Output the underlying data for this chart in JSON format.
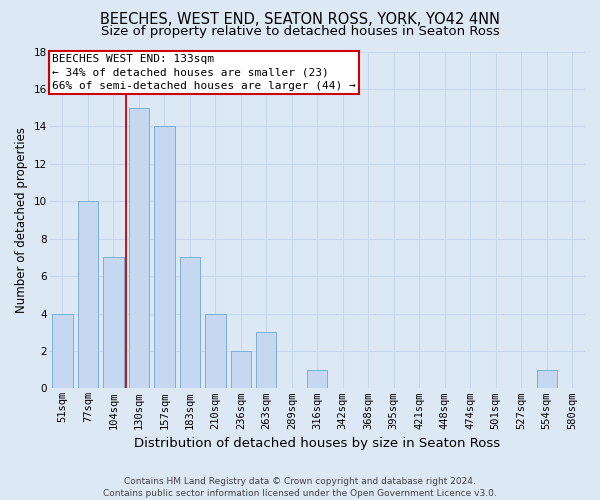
{
  "title": "BEECHES, WEST END, SEATON ROSS, YORK, YO42 4NN",
  "subtitle": "Size of property relative to detached houses in Seaton Ross",
  "xlabel": "Distribution of detached houses by size in Seaton Ross",
  "ylabel": "Number of detached properties",
  "categories": [
    "51sqm",
    "77sqm",
    "104sqm",
    "130sqm",
    "157sqm",
    "183sqm",
    "210sqm",
    "236sqm",
    "263sqm",
    "289sqm",
    "316sqm",
    "342sqm",
    "368sqm",
    "395sqm",
    "421sqm",
    "448sqm",
    "474sqm",
    "501sqm",
    "527sqm",
    "554sqm",
    "580sqm"
  ],
  "values": [
    4,
    10,
    7,
    15,
    14,
    7,
    4,
    2,
    3,
    0,
    1,
    0,
    0,
    0,
    0,
    0,
    0,
    0,
    0,
    1,
    0
  ],
  "bar_color": "#c5d8ef",
  "bar_edge_color": "#7aafd4",
  "grid_color": "#c8d8ec",
  "background_color": "#dde8f5",
  "annotation_line1": "BEECHES WEST END: 133sqm",
  "annotation_line2": "← 34% of detached houses are smaller (23)",
  "annotation_line3": "66% of semi-detached houses are larger (44) →",
  "annotation_box_facecolor": "#ffffff",
  "annotation_box_edge_color": "#cc0000",
  "red_line_x": 2.5,
  "ylim": [
    0,
    18
  ],
  "yticks": [
    0,
    2,
    4,
    6,
    8,
    10,
    12,
    14,
    16,
    18
  ],
  "footer_line1": "Contains HM Land Registry data © Crown copyright and database right 2024.",
  "footer_line2": "Contains public sector information licensed under the Open Government Licence v3.0.",
  "title_fontsize": 10.5,
  "subtitle_fontsize": 9.5,
  "xlabel_fontsize": 9.5,
  "ylabel_fontsize": 8.5,
  "tick_fontsize": 7.5,
  "annotation_fontsize": 8,
  "footer_fontsize": 6.5
}
